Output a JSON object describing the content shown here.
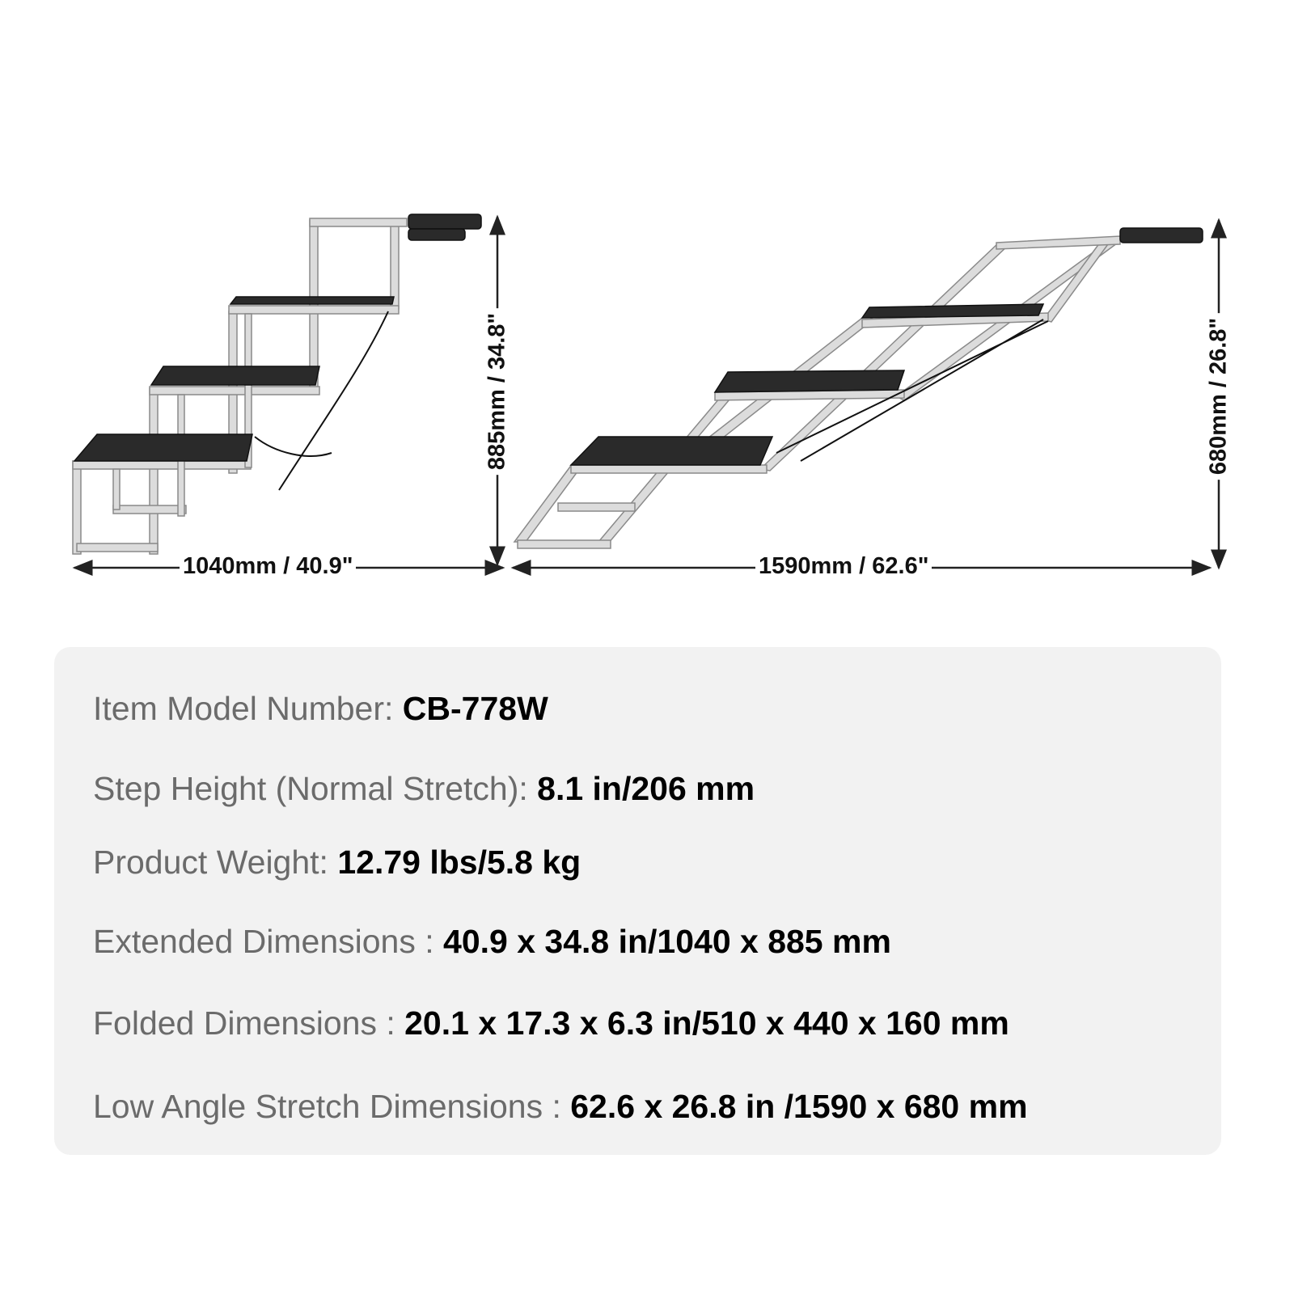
{
  "dimensions": {
    "extended_width": "1040mm / 40.9\"",
    "extended_height": "885mm / 34.8\"",
    "low_angle_width": "1590mm / 62.6\"",
    "low_angle_height": "680mm / 26.8\""
  },
  "specs": [
    {
      "label": "Item Model Number: ",
      "value": "CB-778W"
    },
    {
      "label": "Step Height (Normal Stretch): ",
      "value": "8.1 in/206 mm"
    },
    {
      "label": "Product Weight: ",
      "value": "12.79 lbs/5.8 kg"
    },
    {
      "label": "Extended Dimensions : ",
      "value": "40.9 x 34.8 in/1040 x 885 mm"
    },
    {
      "label": "Folded Dimensions : ",
      "value": "20.1 x 17.3 x 6.3 in/510 x 440 x 160 mm"
    },
    {
      "label": "Low Angle Stretch Dimensions : ",
      "value": "62.6 x 26.8 in /1590 x 680 mm"
    }
  ],
  "colors": {
    "frame": "#d9d9d9",
    "tread": "#2a2a2a",
    "panel": "#f2f2f2",
    "label": "#6b6b6b"
  }
}
